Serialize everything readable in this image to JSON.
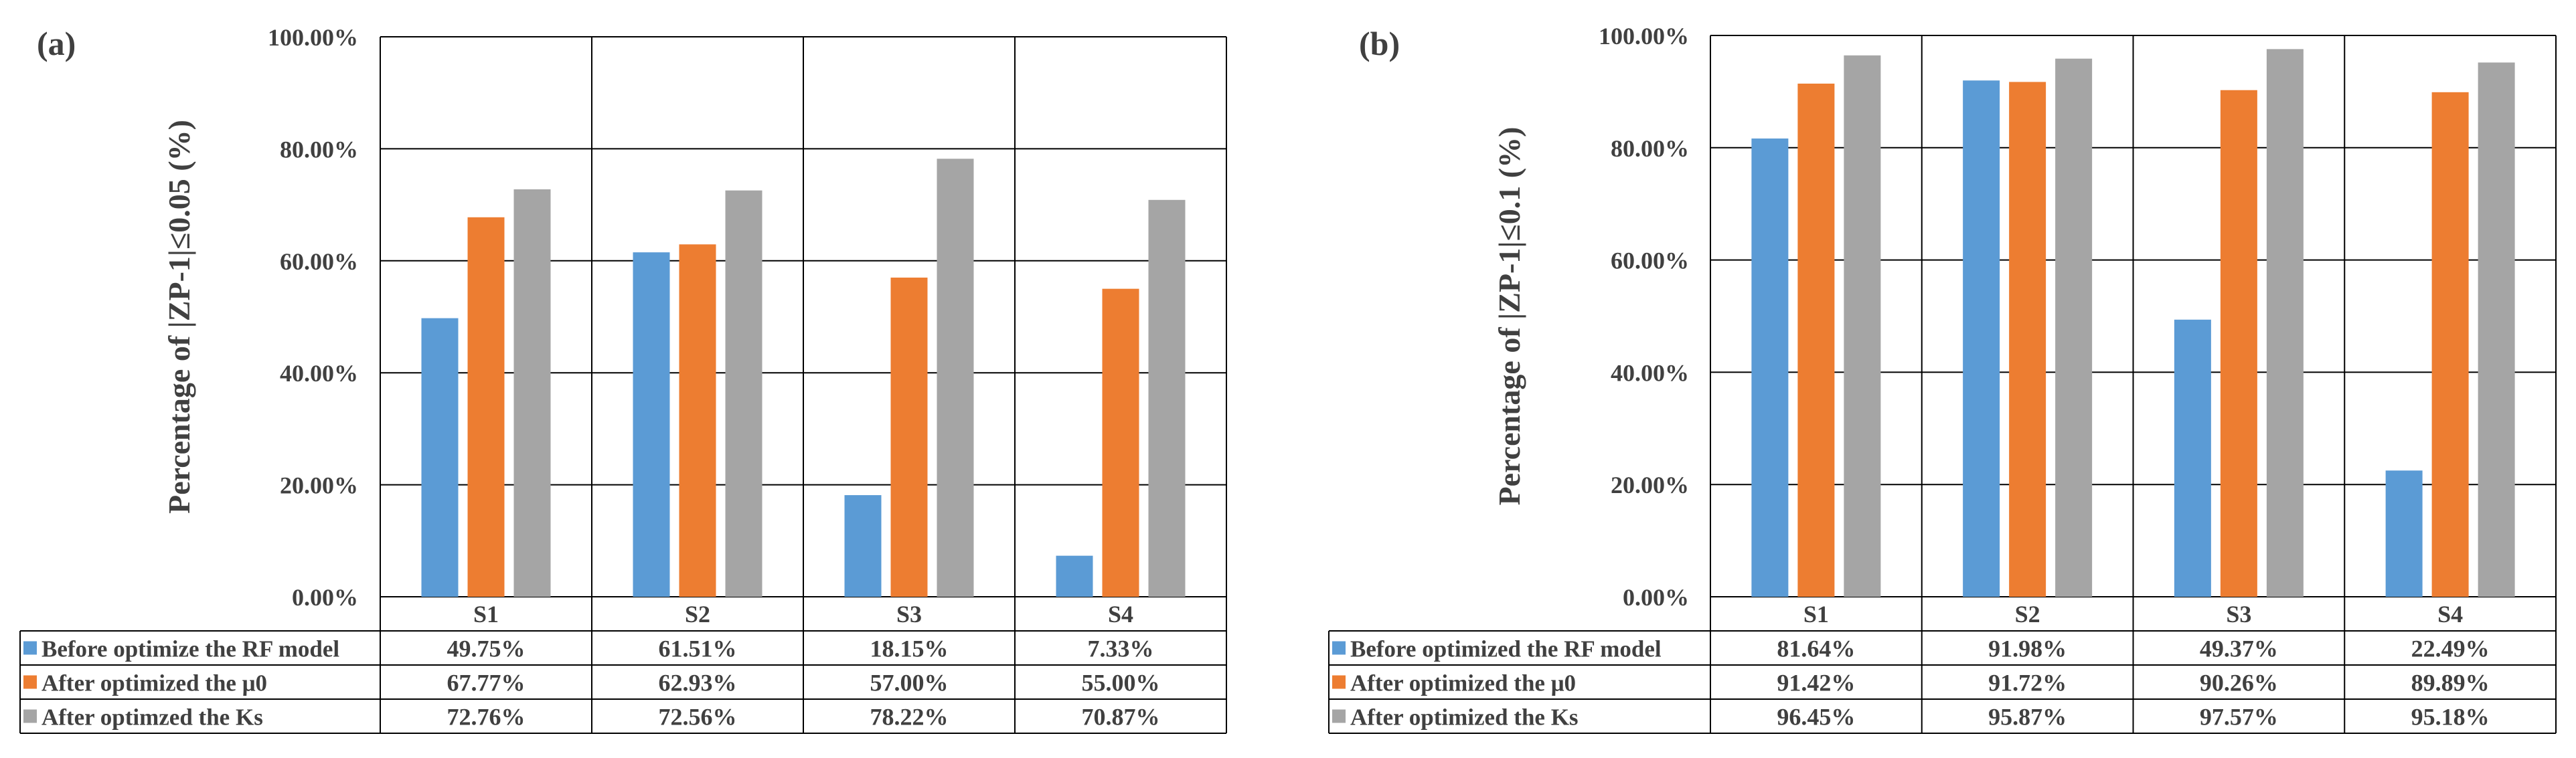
{
  "colors": {
    "series": [
      "#5B9BD5",
      "#ED7D31",
      "#A5A5A5"
    ],
    "grid": "#000000",
    "text": "#404040"
  },
  "chart_data": [
    {
      "type": "bar",
      "panel_label": "(a)",
      "ylabel": "Percentage of |ZP-1|≤0.05 (%)",
      "ylim": [
        0,
        100
      ],
      "yticks": [
        "0.00%",
        "20.00%",
        "40.00%",
        "60.00%",
        "80.00%",
        "100.00%"
      ],
      "categories": [
        "S1",
        "S2",
        "S3",
        "S4"
      ],
      "series": [
        {
          "name": "Before optimize the RF model",
          "values": [
            49.75,
            61.51,
            18.15,
            7.33
          ],
          "labels": [
            "49.75%",
            "61.51%",
            "18.15%",
            "7.33%"
          ]
        },
        {
          "name": "After optimized the μ0",
          "values": [
            67.77,
            62.93,
            57.0,
            55.0
          ],
          "labels": [
            "67.77%",
            "62.93%",
            "57.00%",
            "55.00%"
          ]
        },
        {
          "name": "After optimzed the Ks",
          "values": [
            72.76,
            72.56,
            78.22,
            70.87
          ],
          "labels": [
            "72.76%",
            "72.56%",
            "78.22%",
            "70.87%"
          ]
        }
      ]
    },
    {
      "type": "bar",
      "panel_label": "(b)",
      "ylabel": "Percentage of |ZP-1|≤0.1 (%)",
      "ylim": [
        0,
        100
      ],
      "yticks": [
        "0.00%",
        "20.00%",
        "40.00%",
        "60.00%",
        "80.00%",
        "100.00%"
      ],
      "categories": [
        "S1",
        "S2",
        "S3",
        "S4"
      ],
      "series": [
        {
          "name": "Before optimized the RF model",
          "values": [
            81.64,
            91.98,
            49.37,
            22.49
          ],
          "labels": [
            "81.64%",
            "91.98%",
            "49.37%",
            "22.49%"
          ]
        },
        {
          "name": "After optimized the μ0",
          "values": [
            91.42,
            91.72,
            90.26,
            89.89
          ],
          "labels": [
            "91.42%",
            "91.72%",
            "90.26%",
            "89.89%"
          ]
        },
        {
          "name": "After optimized the Ks",
          "values": [
            96.45,
            95.87,
            97.57,
            95.18
          ],
          "labels": [
            "96.45%",
            "95.87%",
            "97.57%",
            "95.18%"
          ]
        }
      ]
    }
  ]
}
